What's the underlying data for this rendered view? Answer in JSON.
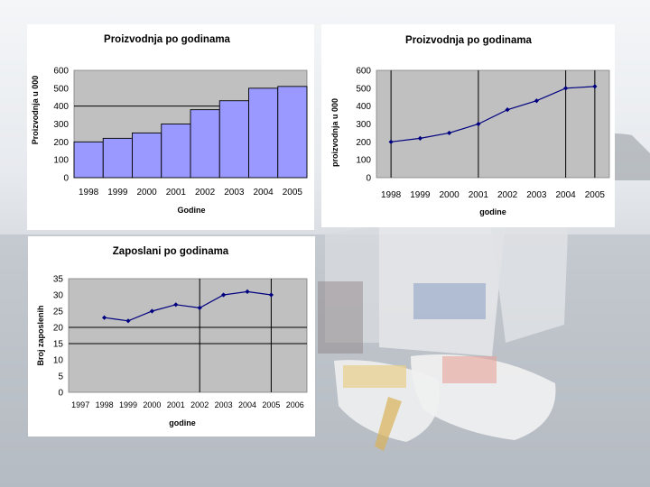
{
  "chart_data": [
    {
      "type": "bar",
      "title": "Proizvodnja po godinama",
      "xlabel": "Godine",
      "ylabel": "Proizvodnja u 000",
      "categories": [
        "1998",
        "1999",
        "2000",
        "2001",
        "2002",
        "2003",
        "2004",
        "2005"
      ],
      "values": [
        200,
        220,
        250,
        300,
        380,
        430,
        500,
        510
      ],
      "ylim": [
        0,
        600
      ],
      "yticks": [
        "0",
        "100",
        "200",
        "300",
        "400",
        "500",
        "600"
      ],
      "grid": "horizontal line at 400",
      "colors": {
        "bar": "#9999ff",
        "plot_bg": "#c0c0c0"
      }
    },
    {
      "type": "line",
      "title": "Proizvodnja po godinama",
      "xlabel": "godine",
      "ylabel": "proizvodnja u 000",
      "categories": [
        "1998",
        "1999",
        "2000",
        "2001",
        "2002",
        "2003",
        "2004",
        "2005"
      ],
      "values": [
        200,
        220,
        250,
        300,
        380,
        430,
        500,
        510
      ],
      "ylim": [
        0,
        600
      ],
      "yticks": [
        "0",
        "100",
        "200",
        "300",
        "400",
        "500",
        "600"
      ],
      "grid": "vertical lines at 1998, 2001, 2004, 2005",
      "colors": {
        "line": "#000080",
        "plot_bg": "#c0c0c0"
      }
    },
    {
      "type": "line",
      "title": "Zaposlani po godinama",
      "xlabel": "godine",
      "ylabel": "Broj zaposlenih",
      "categories": [
        "1997",
        "1998",
        "1999",
        "2000",
        "2001",
        "2002",
        "2003",
        "2004",
        "2005",
        "2006"
      ],
      "values": [
        null,
        23,
        22,
        25,
        27,
        26,
        30,
        31,
        30,
        null
      ],
      "ylim": [
        0,
        35
      ],
      "yticks": [
        "0",
        "5",
        "10",
        "15",
        "20",
        "25",
        "30",
        "35"
      ],
      "grid": "horizontal lines at 15 and 20; vertical lines at 2002 and 2005",
      "colors": {
        "line": "#000080",
        "plot_bg": "#c0c0c0"
      }
    }
  ]
}
